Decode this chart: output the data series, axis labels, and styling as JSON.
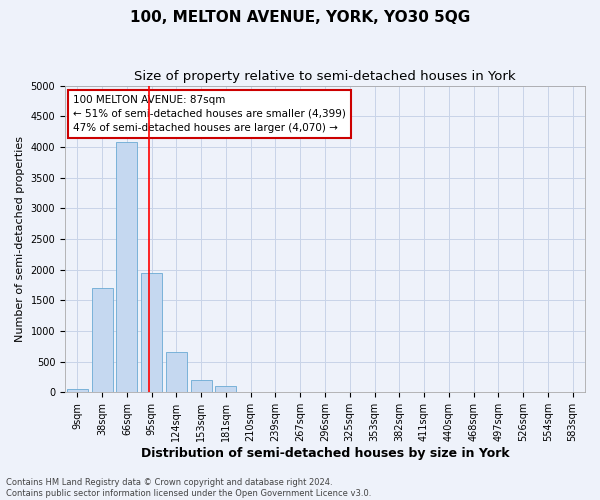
{
  "title": "100, MELTON AVENUE, YORK, YO30 5QG",
  "subtitle": "Size of property relative to semi-detached houses in York",
  "xlabel": "Distribution of semi-detached houses by size in York",
  "ylabel": "Number of semi-detached properties",
  "bin_labels": [
    "9sqm",
    "38sqm",
    "66sqm",
    "95sqm",
    "124sqm",
    "153sqm",
    "181sqm",
    "210sqm",
    "239sqm",
    "267sqm",
    "296sqm",
    "325sqm",
    "353sqm",
    "382sqm",
    "411sqm",
    "440sqm",
    "468sqm",
    "497sqm",
    "526sqm",
    "554sqm",
    "583sqm"
  ],
  "bar_values": [
    50,
    1700,
    4080,
    1950,
    650,
    200,
    100,
    0,
    0,
    0,
    0,
    0,
    0,
    0,
    0,
    0,
    0,
    0,
    0,
    0,
    0
  ],
  "bar_color": "#c5d8f0",
  "bar_edge_color": "#6aaad4",
  "grid_color": "#c8d4e8",
  "background_color": "#eef2fa",
  "red_line_x": 2.9,
  "annotation_text": "100 MELTON AVENUE: 87sqm\n← 51% of semi-detached houses are smaller (4,399)\n47% of semi-detached houses are larger (4,070) →",
  "annotation_box_color": "#ffffff",
  "annotation_box_edge": "#cc0000",
  "ylim": [
    0,
    5000
  ],
  "footnote": "Contains HM Land Registry data © Crown copyright and database right 2024.\nContains public sector information licensed under the Open Government Licence v3.0.",
  "title_fontsize": 11,
  "subtitle_fontsize": 9.5,
  "xlabel_fontsize": 9,
  "ylabel_fontsize": 8,
  "annot_fontsize": 7.5,
  "tick_fontsize": 7
}
